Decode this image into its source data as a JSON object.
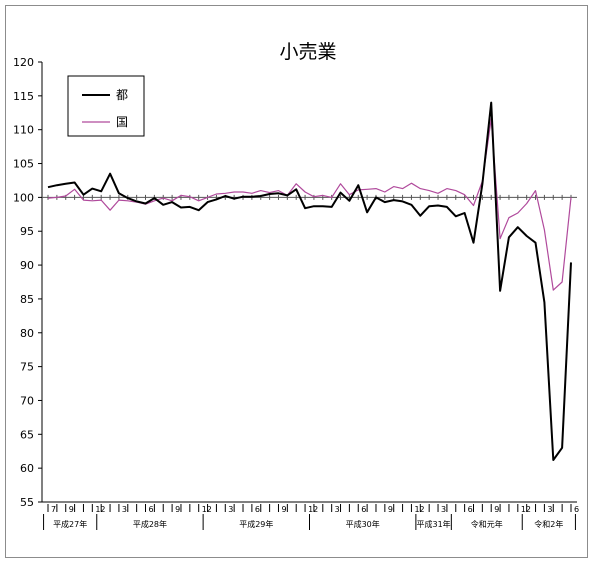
{
  "chart_data": {
    "type": "line",
    "title": "小売業",
    "xlabel": "",
    "ylabel": "",
    "ylim": [
      55,
      120
    ],
    "yticks": [
      55,
      60,
      65,
      70,
      75,
      80,
      85,
      90,
      95,
      100,
      105,
      110,
      115,
      120
    ],
    "reference_line": 100,
    "grid": false,
    "legend_position": "top-left",
    "month_tick_labels": [
      {
        "i": 0,
        "label": "7"
      },
      {
        "i": 2,
        "label": "9"
      },
      {
        "i": 5,
        "label": "12"
      },
      {
        "i": 8,
        "label": "3"
      },
      {
        "i": 11,
        "label": "6"
      },
      {
        "i": 14,
        "label": "9"
      },
      {
        "i": 17,
        "label": "12"
      },
      {
        "i": 20,
        "label": "3"
      },
      {
        "i": 23,
        "label": "6"
      },
      {
        "i": 26,
        "label": "9"
      },
      {
        "i": 29,
        "label": "12"
      },
      {
        "i": 32,
        "label": "3"
      },
      {
        "i": 35,
        "label": "6"
      },
      {
        "i": 38,
        "label": "9"
      },
      {
        "i": 41,
        "label": "12"
      },
      {
        "i": 44,
        "label": "3"
      },
      {
        "i": 47,
        "label": "6"
      },
      {
        "i": 50,
        "label": "9"
      },
      {
        "i": 53,
        "label": "12"
      },
      {
        "i": 56,
        "label": "3"
      },
      {
        "i": 59,
        "label": "6"
      }
    ],
    "year_groups": [
      {
        "label": "平成27年",
        "start": 0,
        "end": 5
      },
      {
        "label": "平成28年",
        "start": 6,
        "end": 17
      },
      {
        "label": "平成29年",
        "start": 18,
        "end": 29
      },
      {
        "label": "平成30年",
        "start": 30,
        "end": 41
      },
      {
        "label": "平成31年",
        "start": 42,
        "end": 45
      },
      {
        "label": "令和元年",
        "start": 46,
        "end": 53
      },
      {
        "label": "令和2年",
        "start": 54,
        "end": 59
      }
    ],
    "series": [
      {
        "name": "都",
        "color": "#000000",
        "values": [
          101.5,
          101.8,
          102.0,
          102.2,
          100.4,
          101.3,
          100.9,
          103.5,
          100.6,
          99.9,
          99.4,
          99.1,
          99.9,
          98.9,
          99.3,
          98.5,
          98.6,
          98.1,
          99.3,
          99.7,
          100.2,
          99.8,
          100.1,
          100.1,
          100.2,
          100.5,
          100.6,
          100.3,
          101.2,
          98.4,
          98.7,
          98.7,
          98.6,
          100.7,
          99.5,
          101.8,
          97.8,
          100.0,
          99.3,
          99.6,
          99.4,
          98.9,
          97.3,
          98.7,
          98.8,
          98.6,
          97.2,
          97.7,
          93.3,
          102.0,
          114.0,
          86.2,
          94.1,
          95.6,
          94.3,
          93.3,
          84.5,
          61.2,
          63.0,
          90.4
        ]
      },
      {
        "name": "国",
        "color": "#b04a9c",
        "values": [
          99.9,
          100.0,
          100.2,
          101.2,
          99.6,
          99.5,
          99.6,
          98.1,
          99.6,
          99.5,
          99.3,
          99.0,
          99.5,
          99.9,
          99.5,
          100.3,
          100.1,
          99.5,
          100.0,
          100.5,
          100.6,
          100.8,
          100.8,
          100.6,
          101.0,
          100.7,
          101.0,
          100.3,
          102.0,
          100.8,
          100.1,
          100.3,
          100.0,
          102.0,
          100.4,
          101.1,
          101.2,
          101.3,
          100.8,
          101.6,
          101.3,
          102.1,
          101.3,
          101.0,
          100.6,
          101.3,
          101.0,
          100.4,
          98.8,
          102.4,
          111.6,
          93.9,
          97.0,
          97.7,
          99.1,
          101.0,
          95.2,
          86.3,
          87.5,
          100.0
        ]
      }
    ]
  }
}
